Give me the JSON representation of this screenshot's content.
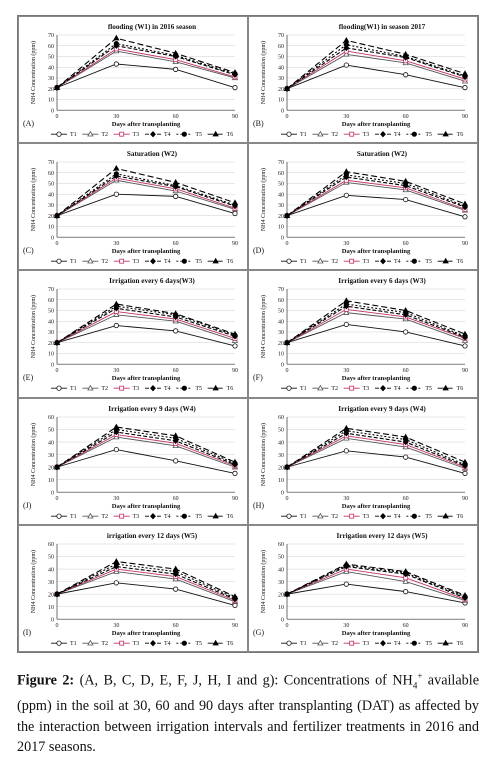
{
  "chart_data": [
    {
      "letter": "(A)",
      "type": "line",
      "title": "flooding (W1) in 2016 season",
      "ylabel": "NH4 Concentration (ppm)",
      "xlabel": "Days after transplanting",
      "x": [
        0,
        30,
        60,
        90
      ],
      "xticks": [
        0,
        30,
        60,
        90
      ],
      "ylim": [
        0,
        70
      ],
      "yticks": [
        0,
        10,
        20,
        30,
        40,
        50,
        60,
        70
      ],
      "series": [
        {
          "name": "T1",
          "values": [
            21,
            43,
            38,
            21
          ]
        },
        {
          "name": "T2",
          "values": [
            21,
            55,
            45,
            30
          ]
        },
        {
          "name": "T3",
          "values": [
            21,
            57,
            47,
            31
          ]
        },
        {
          "name": "T4",
          "values": [
            21,
            60,
            50,
            33
          ]
        },
        {
          "name": "T5",
          "values": [
            21,
            62,
            51,
            34
          ]
        },
        {
          "name": "T6",
          "values": [
            21,
            67,
            53,
            35
          ]
        }
      ]
    },
    {
      "letter": "(B)",
      "type": "line",
      "title": "flooding(W1) in season 2017",
      "ylabel": "NH4 Concentration (ppm)",
      "xlabel": "Days after transplanting",
      "x": [
        0,
        30,
        60,
        90
      ],
      "xticks": [
        0,
        30,
        60,
        90
      ],
      "ylim": [
        0,
        70
      ],
      "yticks": [
        0,
        10,
        20,
        30,
        40,
        50,
        60,
        70
      ],
      "series": [
        {
          "name": "T1",
          "values": [
            20,
            42,
            33,
            21
          ]
        },
        {
          "name": "T2",
          "values": [
            20,
            52,
            44,
            27
          ]
        },
        {
          "name": "T3",
          "values": [
            20,
            55,
            46,
            29
          ]
        },
        {
          "name": "T4",
          "values": [
            20,
            58,
            49,
            31
          ]
        },
        {
          "name": "T5",
          "values": [
            20,
            61,
            50,
            32
          ]
        },
        {
          "name": "T6",
          "values": [
            20,
            65,
            52,
            34
          ]
        }
      ]
    },
    {
      "letter": "(C)",
      "type": "line",
      "title": "Saturation (W2)",
      "ylabel": "NH4 Concentration (ppm)",
      "xlabel": "Days after transplanting",
      "x": [
        0,
        30,
        60,
        90
      ],
      "xticks": [
        0,
        30,
        60,
        90
      ],
      "ylim": [
        0,
        70
      ],
      "yticks": [
        0,
        10,
        20,
        30,
        40,
        50,
        60,
        70
      ],
      "series": [
        {
          "name": "T1",
          "values": [
            20,
            40,
            38,
            22
          ]
        },
        {
          "name": "T2",
          "values": [
            20,
            53,
            43,
            26
          ]
        },
        {
          "name": "T3",
          "values": [
            20,
            55,
            45,
            27
          ]
        },
        {
          "name": "T4",
          "values": [
            20,
            57,
            47,
            29
          ]
        },
        {
          "name": "T5",
          "values": [
            20,
            59,
            48,
            30
          ]
        },
        {
          "name": "T6",
          "values": [
            20,
            64,
            51,
            32
          ]
        }
      ]
    },
    {
      "letter": "(D)",
      "type": "line",
      "title": "Saturation (W2)",
      "ylabel": "NH4 Concentration (ppm)",
      "xlabel": "Days after transplanting",
      "x": [
        0,
        30,
        60,
        90
      ],
      "xticks": [
        0,
        30,
        60,
        90
      ],
      "ylim": [
        0,
        70
      ],
      "yticks": [
        0,
        10,
        20,
        30,
        40,
        50,
        60,
        70
      ],
      "series": [
        {
          "name": "T1",
          "values": [
            20,
            39,
            35,
            19
          ]
        },
        {
          "name": "T2",
          "values": [
            20,
            51,
            44,
            25
          ]
        },
        {
          "name": "T3",
          "values": [
            20,
            53,
            46,
            26
          ]
        },
        {
          "name": "T4",
          "values": [
            20,
            56,
            48,
            28
          ]
        },
        {
          "name": "T5",
          "values": [
            20,
            58,
            50,
            29
          ]
        },
        {
          "name": "T6",
          "values": [
            20,
            61,
            52,
            31
          ]
        }
      ]
    },
    {
      "letter": "(E)",
      "type": "line",
      "title": "Irrigation every 6 days(W3)",
      "ylabel": "NH4 Concentration (ppm)",
      "xlabel": "Days after transplanting",
      "x": [
        0,
        30,
        60,
        90
      ],
      "xticks": [
        0,
        30,
        60,
        90
      ],
      "ylim": [
        0,
        70
      ],
      "yticks": [
        0,
        10,
        20,
        30,
        40,
        50,
        60,
        70
      ],
      "series": [
        {
          "name": "T1",
          "values": [
            20,
            36,
            31,
            17
          ]
        },
        {
          "name": "T2",
          "values": [
            20,
            46,
            40,
            22
          ]
        },
        {
          "name": "T3",
          "values": [
            20,
            49,
            42,
            24
          ]
        },
        {
          "name": "T4",
          "values": [
            20,
            52,
            44,
            26
          ]
        },
        {
          "name": "T5",
          "values": [
            20,
            54,
            46,
            27
          ]
        },
        {
          "name": "T6",
          "values": [
            20,
            56,
            47,
            28
          ]
        }
      ]
    },
    {
      "letter": "(F)",
      "type": "line",
      "title": "Irrigation every 6 days (W3)",
      "ylabel": "NH4 Concentration (ppm)",
      "xlabel": "Days after transplanting",
      "x": [
        0,
        30,
        60,
        90
      ],
      "xticks": [
        0,
        30,
        60,
        90
      ],
      "ylim": [
        0,
        70
      ],
      "yticks": [
        0,
        10,
        20,
        30,
        40,
        50,
        60,
        70
      ],
      "series": [
        {
          "name": "T1",
          "values": [
            20,
            37,
            30,
            17
          ]
        },
        {
          "name": "T2",
          "values": [
            20,
            48,
            42,
            22
          ]
        },
        {
          "name": "T3",
          "values": [
            20,
            51,
            44,
            24
          ]
        },
        {
          "name": "T4",
          "values": [
            20,
            54,
            46,
            25
          ]
        },
        {
          "name": "T5",
          "values": [
            20,
            56,
            48,
            26
          ]
        },
        {
          "name": "T6",
          "values": [
            20,
            59,
            50,
            28
          ]
        }
      ]
    },
    {
      "letter": "(J)",
      "type": "line",
      "title": "Irrigation every 9 days (W4)",
      "ylabel": "NH4 Concentration (ppm)",
      "xlabel": "Days after transplanting",
      "x": [
        0,
        30,
        60,
        90
      ],
      "xticks": [
        0,
        30,
        60,
        90
      ],
      "ylim": [
        0,
        60
      ],
      "yticks": [
        0,
        10,
        20,
        30,
        40,
        50,
        60
      ],
      "series": [
        {
          "name": "T1",
          "values": [
            20,
            34,
            25,
            15
          ]
        },
        {
          "name": "T2",
          "values": [
            20,
            44,
            37,
            20
          ]
        },
        {
          "name": "T3",
          "values": [
            20,
            46,
            39,
            21
          ]
        },
        {
          "name": "T4",
          "values": [
            20,
            48,
            41,
            22
          ]
        },
        {
          "name": "T5",
          "values": [
            20,
            50,
            43,
            23
          ]
        },
        {
          "name": "T6",
          "values": [
            20,
            52,
            45,
            24
          ]
        }
      ]
    },
    {
      "letter": "(H)",
      "type": "line",
      "title": "Irrigation every 9 days (W4)",
      "ylabel": "NH4 Concentration (ppm)",
      "xlabel": "Days after transplanting",
      "x": [
        0,
        30,
        60,
        90
      ],
      "xticks": [
        0,
        30,
        60,
        90
      ],
      "ylim": [
        0,
        60
      ],
      "yticks": [
        0,
        10,
        20,
        30,
        40,
        50,
        60
      ],
      "series": [
        {
          "name": "T1",
          "values": [
            20,
            33,
            28,
            15
          ]
        },
        {
          "name": "T2",
          "values": [
            20,
            43,
            36,
            19
          ]
        },
        {
          "name": "T3",
          "values": [
            20,
            45,
            38,
            20
          ]
        },
        {
          "name": "T4",
          "values": [
            20,
            47,
            40,
            21
          ]
        },
        {
          "name": "T5",
          "values": [
            20,
            49,
            42,
            22
          ]
        },
        {
          "name": "T6",
          "values": [
            20,
            51,
            44,
            24
          ]
        }
      ]
    },
    {
      "letter": "(I)",
      "type": "line",
      "title": "irrigation every 12 days (W5)",
      "ylabel": "NH4 Concentration (ppm)",
      "xlabel": "Days after transplanting",
      "x": [
        0,
        30,
        60,
        90
      ],
      "xticks": [
        0,
        30,
        60,
        90
      ],
      "ylim": [
        0,
        60
      ],
      "yticks": [
        0,
        10,
        20,
        30,
        40,
        50,
        60
      ],
      "series": [
        {
          "name": "T1",
          "values": [
            20,
            29,
            24,
            11
          ]
        },
        {
          "name": "T2",
          "values": [
            20,
            38,
            32,
            14
          ]
        },
        {
          "name": "T3",
          "values": [
            20,
            40,
            34,
            15
          ]
        },
        {
          "name": "T4",
          "values": [
            20,
            42,
            36,
            16
          ]
        },
        {
          "name": "T5",
          "values": [
            20,
            44,
            38,
            17
          ]
        },
        {
          "name": "T6",
          "values": [
            20,
            46,
            40,
            18
          ]
        }
      ]
    },
    {
      "letter": "(G)",
      "type": "line",
      "title": "Irrigation every 12 days (W5)",
      "ylabel": "NH4 Concentration (ppm)",
      "xlabel": "Days after transplanting",
      "x": [
        0,
        30,
        60,
        90
      ],
      "xticks": [
        0,
        30,
        60,
        90
      ],
      "ylim": [
        0,
        60
      ],
      "yticks": [
        0,
        10,
        20,
        30,
        40,
        50,
        60
      ],
      "series": [
        {
          "name": "T1",
          "values": [
            20,
            28,
            22,
            13
          ]
        },
        {
          "name": "T2",
          "values": [
            20,
            38,
            30,
            15
          ]
        },
        {
          "name": "T3",
          "values": [
            20,
            40,
            33,
            16
          ]
        },
        {
          "name": "T4",
          "values": [
            20,
            42,
            36,
            17
          ]
        },
        {
          "name": "T5",
          "values": [
            20,
            43,
            37,
            18
          ]
        },
        {
          "name": "T6",
          "values": [
            20,
            44,
            38,
            19
          ]
        }
      ]
    }
  ],
  "styles": {
    "series_colors": [
      "#111111",
      "#555555",
      "#c0306a",
      "#000000",
      "#000000",
      "#000000"
    ],
    "series_dash": [
      "",
      "",
      "",
      "4,2",
      "2,2",
      "6,3"
    ],
    "series_marker": [
      "circle",
      "triangle",
      "square",
      "diamond",
      "circle-filled",
      "triangle-filled"
    ]
  },
  "caption": {
    "figure_label": "Figure 2:",
    "part1": " (A, B, C, D, E, F, J, H, I and g): Concentrations of NH",
    "sub": "4",
    "sup": "+",
    "part2": " available (ppm) in the soil at 30, 60 and 90 days after transplanting (DAT) as affected by the interaction between irrigation intervals and fertilizer treatments in 2016 and 2017 seasons."
  }
}
